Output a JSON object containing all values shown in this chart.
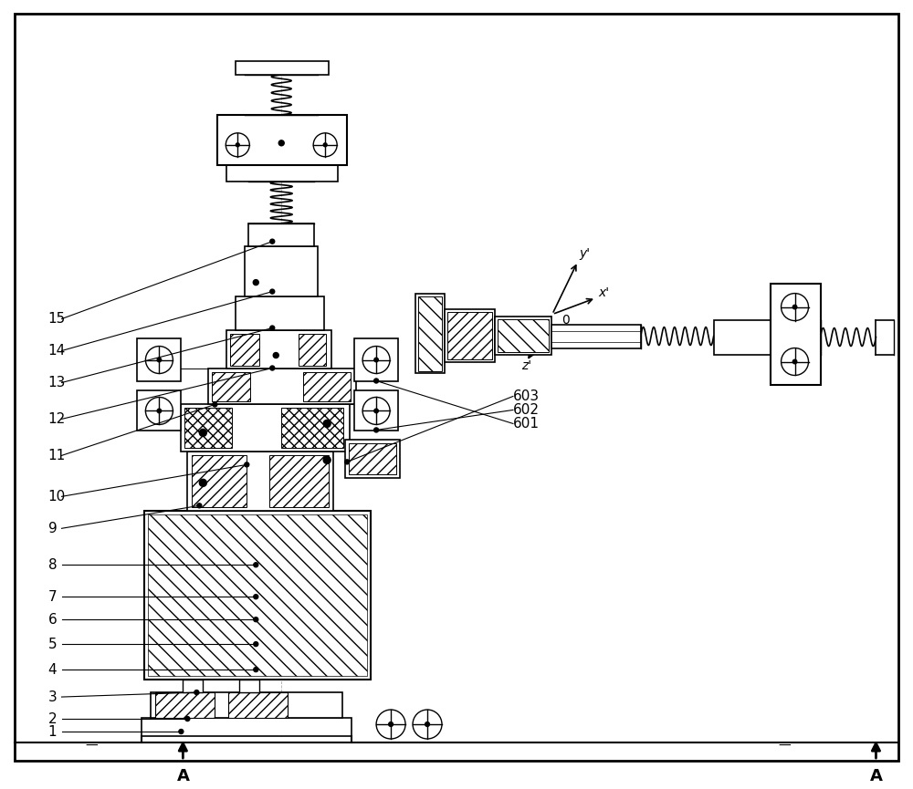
{
  "bg_color": "#ffffff",
  "border_color": "#000000",
  "line_color": "#000000",
  "labels_left": [
    "1",
    "2",
    "3",
    "4",
    "5",
    "6",
    "7",
    "8",
    "9",
    "10",
    "11",
    "12",
    "13",
    "14",
    "15"
  ],
  "labels_right": [
    "601",
    "602",
    "603"
  ],
  "section_label": "A",
  "axes_labels": [
    "x'",
    "y'",
    "z'",
    "0"
  ],
  "figsize": [
    10.0,
    8.65
  ],
  "dpi": 100
}
